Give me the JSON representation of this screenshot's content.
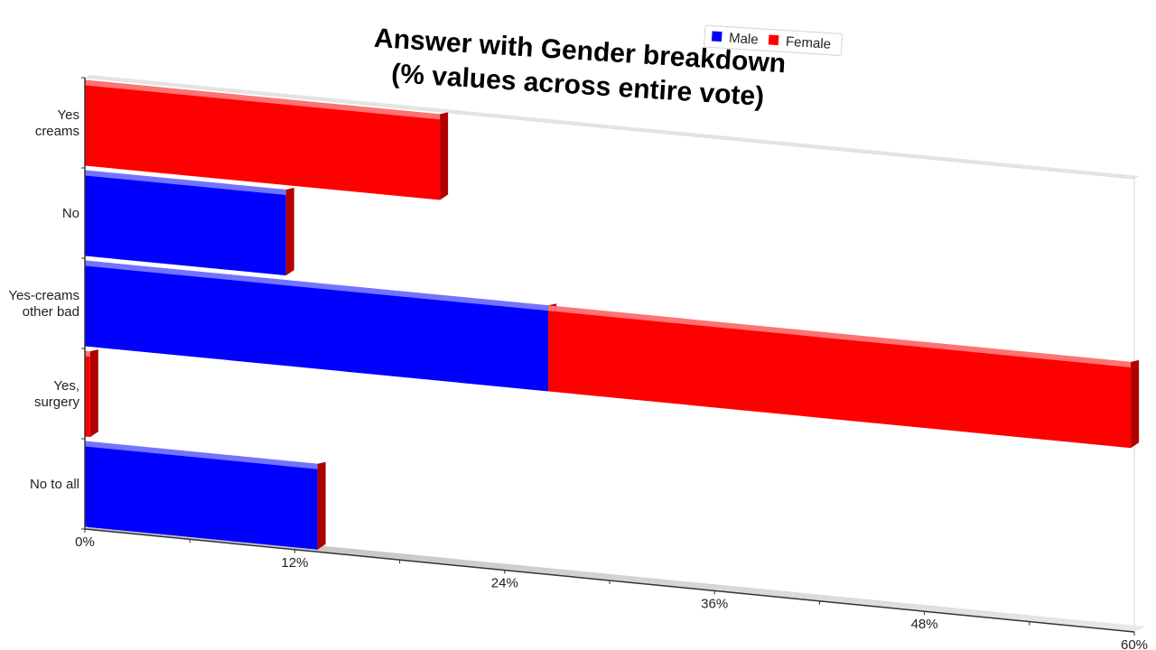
{
  "chart_data": {
    "type": "bar",
    "orientation": "horizontal",
    "stacked": true,
    "style": "3d-perspective",
    "title_lines": [
      "Answer with Gender breakdown",
      "(% values across entire vote)"
    ],
    "categories": [
      "Yes\ncreams",
      "No",
      "Yes-creams\nother bad",
      "Yes,\nsurgery",
      "No to all"
    ],
    "series": [
      {
        "name": "Male",
        "color": "#0000ff",
        "values": [
          0,
          11.5,
          26.5,
          0,
          13.3
        ]
      },
      {
        "name": "Female",
        "color": "#ff0000",
        "values": [
          20.3,
          0,
          33.3,
          0.3,
          0
        ]
      }
    ],
    "xlim": [
      0,
      60
    ],
    "ticks": [
      0,
      12,
      24,
      36,
      48,
      60
    ],
    "tick_labels": [
      "0%",
      "12%",
      "24%",
      "36%",
      "48%",
      "60%"
    ],
    "legend": {
      "position": "top-right",
      "entries": [
        "Male",
        "Female"
      ]
    },
    "grid": false
  }
}
